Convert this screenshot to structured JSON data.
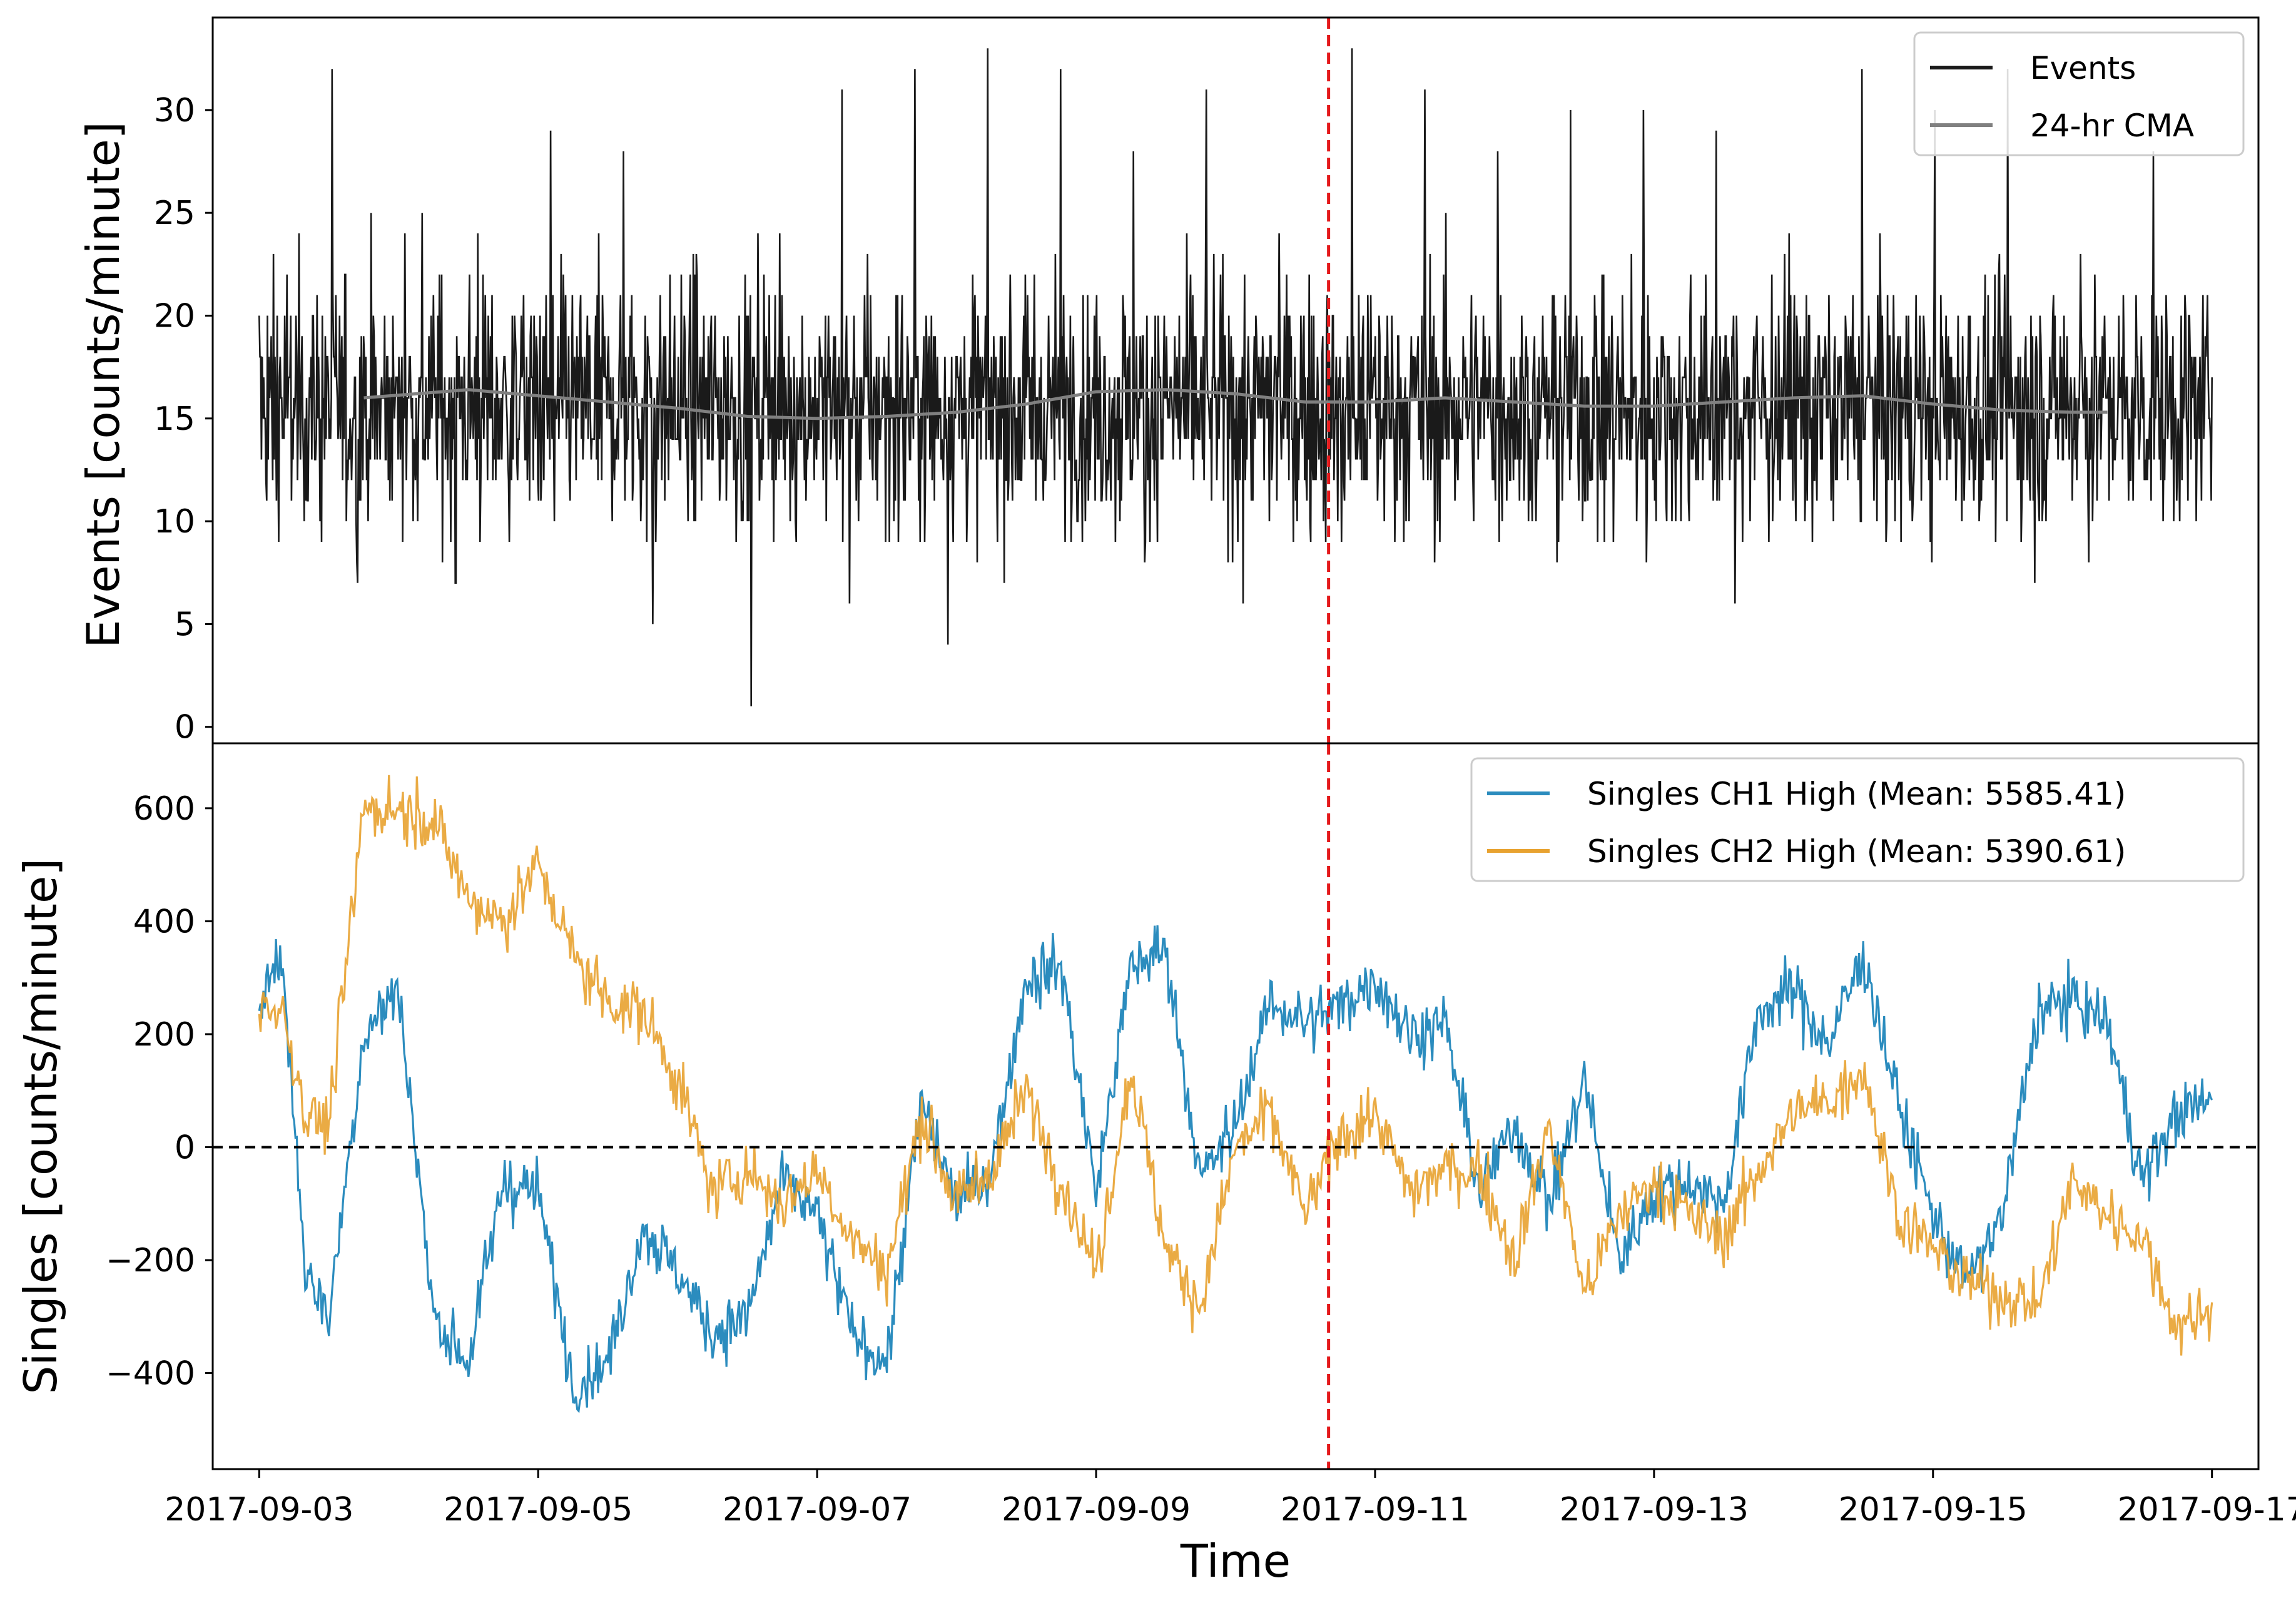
{
  "chart_data": [
    {
      "type": "line",
      "panel": "top",
      "ylabel": "Events [counts/minute]",
      "xlabel": "",
      "xlim": [
        "2017-09-02 16:00",
        "2017-09-17 08:00"
      ],
      "ylim": [
        -0.8,
        34.5
      ],
      "yticks": [
        0,
        5,
        10,
        15,
        20,
        25,
        30
      ],
      "legend_position": "top-right",
      "marker_line": {
        "x": "2017-09-10 16:00",
        "color": "#e41a1c",
        "style": "dashed"
      },
      "series": [
        {
          "name": "Events",
          "color": "#1a1a1a",
          "noisy": true,
          "x": [
            "2017-09-03",
            "2017-09-17"
          ],
          "mean": 15.6,
          "min": 1,
          "max": 33
        },
        {
          "name": "24-hr CMA",
          "color": "#808080",
          "x": [
            "2017-09-03 18:00",
            "2017-09-04 12:00",
            "2017-09-05 00:00",
            "2017-09-06 00:00",
            "2017-09-06 12:00",
            "2017-09-07 00:00",
            "2017-09-07 12:00",
            "2017-09-08 00:00",
            "2017-09-08 12:00",
            "2017-09-09 00:00",
            "2017-09-09 12:00",
            "2017-09-10 00:00",
            "2017-09-10 12:00",
            "2017-09-11 00:00",
            "2017-09-11 12:00",
            "2017-09-12 00:00",
            "2017-09-12 12:00",
            "2017-09-13 00:00",
            "2017-09-13 12:00",
            "2017-09-14 00:00",
            "2017-09-14 12:00",
            "2017-09-15 00:00",
            "2017-09-15 12:00",
            "2017-09-16 00:00",
            "2017-09-16 06:00"
          ],
          "values": [
            16.0,
            16.4,
            16.1,
            15.5,
            15.1,
            15.0,
            15.1,
            15.3,
            15.7,
            16.3,
            16.4,
            16.2,
            15.8,
            15.8,
            16.0,
            15.8,
            15.6,
            15.6,
            15.8,
            16.0,
            16.1,
            15.7,
            15.4,
            15.3,
            15.3
          ]
        }
      ]
    },
    {
      "type": "line",
      "panel": "bottom",
      "ylabel": "Singles [counts/minute]",
      "xlabel": "Time",
      "xlim": [
        "2017-09-02 16:00",
        "2017-09-17 08:00"
      ],
      "xticks": [
        "2017-09-03",
        "2017-09-05",
        "2017-09-07",
        "2017-09-09",
        "2017-09-11",
        "2017-09-13",
        "2017-09-15",
        "2017-09-17"
      ],
      "ylim": [
        -570,
        715
      ],
      "yticks": [
        -400,
        -200,
        0,
        200,
        400,
        600
      ],
      "yticklabels": [
        "−400",
        "−200",
        "0",
        "200",
        "400",
        "600"
      ],
      "legend_position": "top-right",
      "marker_line": {
        "x": "2017-09-10 16:00",
        "color": "#e41a1c",
        "style": "dashed"
      },
      "zero_line": {
        "y": 0,
        "color": "#000000",
        "style": "dashed"
      },
      "series": [
        {
          "name": "Singles CH1 High (Mean: 5585.41)",
          "color": "#2b8cbe",
          "x": [
            "2017-09-03 00:00",
            "2017-09-03 04:00",
            "2017-09-03 08:00",
            "2017-09-03 12:00",
            "2017-09-03 18:00",
            "2017-09-04 00:00",
            "2017-09-04 06:00",
            "2017-09-04 12:00",
            "2017-09-04 18:00",
            "2017-09-05 00:00",
            "2017-09-05 06:00",
            "2017-09-05 12:00",
            "2017-09-05 18:00",
            "2017-09-06 00:00",
            "2017-09-06 06:00",
            "2017-09-06 12:00",
            "2017-09-06 18:00",
            "2017-09-07 00:00",
            "2017-09-07 06:00",
            "2017-09-07 12:00",
            "2017-09-07 18:00",
            "2017-09-08 00:00",
            "2017-09-08 06:00",
            "2017-09-08 12:00",
            "2017-09-08 18:00",
            "2017-09-09 00:00",
            "2017-09-09 06:00",
            "2017-09-09 12:00",
            "2017-09-09 18:00",
            "2017-09-10 00:00",
            "2017-09-10 06:00",
            "2017-09-10 12:00",
            "2017-09-10 18:00",
            "2017-09-11 00:00",
            "2017-09-11 06:00",
            "2017-09-11 12:00",
            "2017-09-11 18:00",
            "2017-09-12 00:00",
            "2017-09-12 06:00",
            "2017-09-12 12:00",
            "2017-09-12 18:00",
            "2017-09-13 00:00",
            "2017-09-13 06:00",
            "2017-09-13 12:00",
            "2017-09-13 18:00",
            "2017-09-14 00:00",
            "2017-09-14 06:00",
            "2017-09-14 12:00",
            "2017-09-14 18:00",
            "2017-09-15 00:00",
            "2017-09-15 06:00",
            "2017-09-15 12:00",
            "2017-09-15 18:00",
            "2017-09-16 00:00",
            "2017-09-16 06:00",
            "2017-09-16 12:00",
            "2017-09-16 18:00",
            "2017-09-17 00:00"
          ],
          "values": [
            280,
            330,
            -220,
            -300,
            200,
            280,
            -300,
            -380,
            -60,
            -80,
            -420,
            -380,
            -140,
            -220,
            -330,
            -300,
            -60,
            -120,
            -330,
            -380,
            80,
            -100,
            -40,
            300,
            320,
            -80,
            320,
            350,
            -60,
            40,
            260,
            220,
            250,
            300,
            200,
            220,
            -80,
            40,
            -100,
            120,
            -200,
            -80,
            -60,
            -100,
            240,
            280,
            180,
            340,
            80,
            -120,
            -240,
            -120,
            240,
            260,
            220,
            -60,
            60,
            80
          ]
        },
        {
          "name": "Singles CH2 High (Mean: 5390.61)",
          "color": "#e8a230",
          "x": [
            "2017-09-03 00:00",
            "2017-09-03 04:00",
            "2017-09-03 08:00",
            "2017-09-03 12:00",
            "2017-09-03 18:00",
            "2017-09-04 00:00",
            "2017-09-04 06:00",
            "2017-09-04 12:00",
            "2017-09-04 18:00",
            "2017-09-05 00:00",
            "2017-09-05 06:00",
            "2017-09-05 12:00",
            "2017-09-05 18:00",
            "2017-09-06 00:00",
            "2017-09-06 06:00",
            "2017-09-06 12:00",
            "2017-09-06 18:00",
            "2017-09-07 00:00",
            "2017-09-07 06:00",
            "2017-09-07 12:00",
            "2017-09-07 18:00",
            "2017-09-08 00:00",
            "2017-09-08 06:00",
            "2017-09-08 12:00",
            "2017-09-08 18:00",
            "2017-09-09 00:00",
            "2017-09-09 06:00",
            "2017-09-09 12:00",
            "2017-09-09 18:00",
            "2017-09-10 00:00",
            "2017-09-10 06:00",
            "2017-09-10 12:00",
            "2017-09-10 18:00",
            "2017-09-11 00:00",
            "2017-09-11 06:00",
            "2017-09-11 12:00",
            "2017-09-11 18:00",
            "2017-09-12 00:00",
            "2017-09-12 06:00",
            "2017-09-12 12:00",
            "2017-09-12 18:00",
            "2017-09-13 00:00",
            "2017-09-13 06:00",
            "2017-09-13 12:00",
            "2017-09-13 18:00",
            "2017-09-14 00:00",
            "2017-09-14 06:00",
            "2017-09-14 12:00",
            "2017-09-14 18:00",
            "2017-09-15 00:00",
            "2017-09-15 06:00",
            "2017-09-15 12:00",
            "2017-09-15 18:00",
            "2017-09-16 00:00",
            "2017-09-16 06:00",
            "2017-09-16 12:00",
            "2017-09-16 18:00",
            "2017-09-17 00:00"
          ],
          "values": [
            260,
            240,
            60,
            40,
            600,
            600,
            580,
            440,
            400,
            500,
            340,
            260,
            240,
            120,
            -80,
            -40,
            -100,
            -40,
            -160,
            -220,
            60,
            -100,
            -40,
            100,
            -60,
            -220,
            140,
            -180,
            -280,
            0,
            60,
            -120,
            20,
            60,
            -80,
            -40,
            -40,
            -200,
            40,
            -260,
            -120,
            -60,
            -120,
            -160,
            -40,
            60,
            80,
            140,
            -120,
            -180,
            -240,
            -260,
            -280,
            -60,
            -120,
            -160,
            -320,
            -280
          ]
        }
      ]
    }
  ]
}
